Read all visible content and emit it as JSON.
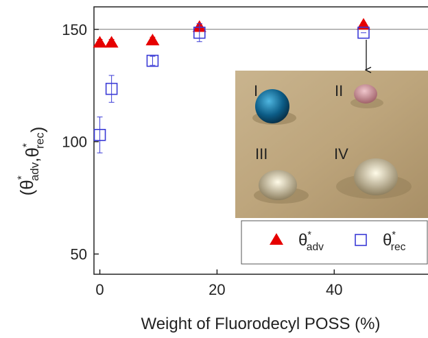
{
  "chart_data": {
    "type": "scatter",
    "x_label": "Weight of Fluorodecyl POSS (%)",
    "y_label": "(θ*adv,θ*rec)",
    "x": [
      0,
      2,
      9,
      17,
      45
    ],
    "series": [
      {
        "name": "θ*adv",
        "color": "#e60000",
        "marker": "triangle",
        "values": [
          144,
          144,
          145,
          151,
          152
        ],
        "errors": [
          1.5,
          1.5,
          1.5,
          1.5,
          1
        ]
      },
      {
        "name": "θ*rec",
        "color": "#3a3ad6",
        "marker": "square",
        "values": [
          103,
          123.5,
          136,
          148.5,
          148.5
        ],
        "errors": [
          8,
          6,
          2,
          4,
          0
        ]
      }
    ],
    "xlim": [
      -1,
      56
    ],
    "ylim": [
      41,
      160
    ],
    "xticks": [
      0,
      20,
      40
    ],
    "yticks": [
      50,
      100,
      150
    ],
    "reference_line": 150,
    "inset": {
      "labels": [
        "I",
        "II",
        "III",
        "IV"
      ]
    }
  }
}
